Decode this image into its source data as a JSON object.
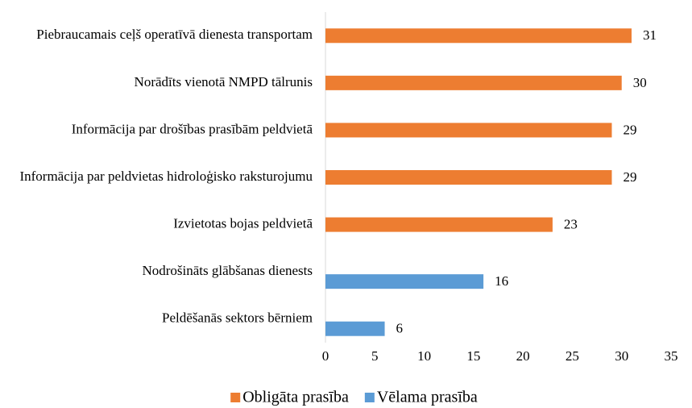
{
  "chart_data": {
    "type": "bar",
    "orientation": "horizontal",
    "categories": [
      "Piebraucamais ceļš operatīvā dienesta transportam",
      "Norādīts vienotā NMPD tālrunis",
      "Informācija par drošības prasībām peldvietā",
      "Informācija par peldvietas hidroloģisko raksturojumu",
      "Izvietotas bojas peldvietā",
      "Nodrošināts glābšanas dienests",
      "Peldēšanās sektors bērniem"
    ],
    "series": [
      {
        "name": "Obligāta prasība",
        "color": "#ed7d31",
        "values": [
          31,
          30,
          29,
          29,
          23,
          null,
          null
        ]
      },
      {
        "name": "Vēlama prasība",
        "color": "#5b9bd5",
        "values": [
          null,
          null,
          null,
          null,
          null,
          16,
          6
        ]
      }
    ],
    "xlim": [
      0,
      35
    ],
    "xticks": [
      0,
      5,
      10,
      15,
      20,
      25,
      30,
      35
    ],
    "grid": false,
    "legend": "bottom"
  }
}
